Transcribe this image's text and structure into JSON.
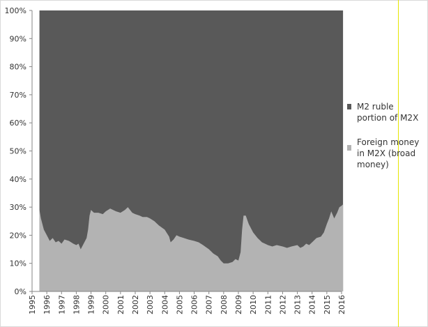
{
  "chart_data": {
    "type": "area",
    "stacked": "percent",
    "title": "",
    "xlabel": "",
    "ylabel": "",
    "ylim": [
      0,
      100
    ],
    "y_ticks": [
      "0%",
      "10%",
      "20%",
      "30%",
      "40%",
      "50%",
      "60%",
      "70%",
      "80%",
      "90%",
      "100%"
    ],
    "x_ticks": [
      "1995",
      "1996",
      "1997",
      "1998",
      "1999",
      "2000",
      "2001",
      "2002",
      "2003",
      "2004",
      "2005",
      "2006",
      "2007",
      "2008",
      "2009",
      "2010",
      "2011",
      "2012",
      "2013",
      "2014",
      "2015",
      "2016"
    ],
    "x_range": [
      1995.0,
      2016.0
    ],
    "legend_position": "right",
    "series": [
      {
        "name": "Foreign money in M2X (broad money)",
        "color": "#b3b3b3",
        "points": [
          [
            1995.5,
            29
          ],
          [
            1995.6,
            26
          ],
          [
            1995.8,
            22
          ],
          [
            1996.0,
            20
          ],
          [
            1996.2,
            18
          ],
          [
            1996.4,
            19
          ],
          [
            1996.6,
            17.5
          ],
          [
            1996.8,
            18
          ],
          [
            1997.0,
            17
          ],
          [
            1997.2,
            18.5
          ],
          [
            1997.5,
            18
          ],
          [
            1997.8,
            17
          ],
          [
            1998.0,
            16.5
          ],
          [
            1998.15,
            17
          ],
          [
            1998.3,
            15
          ],
          [
            1998.5,
            17
          ],
          [
            1998.7,
            19
          ],
          [
            1998.8,
            22
          ],
          [
            1998.9,
            27
          ],
          [
            1999.0,
            29
          ],
          [
            1999.2,
            28
          ],
          [
            1999.5,
            28
          ],
          [
            1999.8,
            27.5
          ],
          [
            2000.0,
            28.5
          ],
          [
            2000.3,
            29.5
          ],
          [
            2000.7,
            28.5
          ],
          [
            2001.0,
            28
          ],
          [
            2001.3,
            29
          ],
          [
            2001.5,
            30
          ],
          [
            2001.8,
            28
          ],
          [
            2002.0,
            27.5
          ],
          [
            2002.3,
            27
          ],
          [
            2002.5,
            26.5
          ],
          [
            2002.8,
            26.5
          ],
          [
            2003.0,
            26
          ],
          [
            2003.3,
            25
          ],
          [
            2003.6,
            23.5
          ],
          [
            2004.0,
            22
          ],
          [
            2004.3,
            19.5
          ],
          [
            2004.4,
            17.5
          ],
          [
            2004.6,
            18.5
          ],
          [
            2004.8,
            20
          ],
          [
            2005.0,
            19.5
          ],
          [
            2005.3,
            19
          ],
          [
            2005.6,
            18.5
          ],
          [
            2006.0,
            18
          ],
          [
            2006.3,
            17.5
          ],
          [
            2006.6,
            16.5
          ],
          [
            2007.0,
            15
          ],
          [
            2007.3,
            13.5
          ],
          [
            2007.6,
            12.5
          ],
          [
            2007.8,
            11
          ],
          [
            2008.0,
            10
          ],
          [
            2008.3,
            10
          ],
          [
            2008.6,
            10.5
          ],
          [
            2008.8,
            11.5
          ],
          [
            2009.0,
            11
          ],
          [
            2009.15,
            14
          ],
          [
            2009.25,
            22
          ],
          [
            2009.35,
            27
          ],
          [
            2009.5,
            27
          ],
          [
            2009.7,
            24
          ],
          [
            2010.0,
            21
          ],
          [
            2010.3,
            19
          ],
          [
            2010.6,
            17.5
          ],
          [
            2011.0,
            16.5
          ],
          [
            2011.3,
            16
          ],
          [
            2011.6,
            16.5
          ],
          [
            2012.0,
            16
          ],
          [
            2012.3,
            15.5
          ],
          [
            2012.6,
            16
          ],
          [
            2013.0,
            16.5
          ],
          [
            2013.2,
            15.5
          ],
          [
            2013.4,
            16
          ],
          [
            2013.6,
            17
          ],
          [
            2013.8,
            16.5
          ],
          [
            2014.0,
            17.5
          ],
          [
            2014.3,
            19
          ],
          [
            2014.6,
            19.5
          ],
          [
            2014.8,
            21
          ],
          [
            2015.0,
            24
          ],
          [
            2015.15,
            26
          ],
          [
            2015.3,
            28.5
          ],
          [
            2015.5,
            26
          ],
          [
            2015.7,
            28
          ],
          [
            2015.85,
            30
          ],
          [
            2016.0,
            30.5
          ],
          [
            2016.1,
            31
          ]
        ]
      },
      {
        "name": "M2 ruble portion of M2X",
        "color": "#595959",
        "fills_to": 100
      }
    ]
  }
}
